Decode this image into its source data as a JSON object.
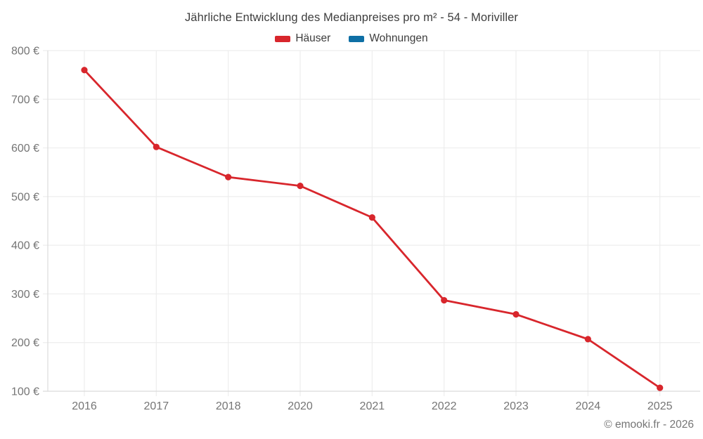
{
  "title": "Jährliche Entwicklung des Medianpreises pro m² - 54 - Moriviller",
  "legend": {
    "items": [
      {
        "label": "Häuser",
        "color": "#d8262c"
      },
      {
        "label": "Wohnungen",
        "color": "#0e6fa5"
      }
    ]
  },
  "copyright": "© emooki.fr - 2026",
  "chart_data": {
    "type": "line",
    "title": "Jährliche Entwicklung des Medianpreises pro m² - 54 - Moriviller",
    "categories": [
      "2016",
      "2017",
      "2018",
      "2020",
      "2021",
      "2022",
      "2023",
      "2024",
      "2025"
    ],
    "series": [
      {
        "name": "Häuser",
        "color": "#d8262c",
        "values": [
          760,
          602,
          540,
          522,
          457,
          287,
          258,
          207,
          107
        ]
      },
      {
        "name": "Wohnungen",
        "color": "#0e6fa5",
        "values": []
      }
    ],
    "y_tick_values": [
      800,
      700,
      600,
      500,
      400,
      300,
      200,
      100
    ],
    "y_tick_labels": [
      "800 €",
      "700 €",
      "600 €",
      "500 €",
      "400 €",
      "300 €",
      "200 €",
      "100 €"
    ],
    "ylim": [
      100,
      800
    ],
    "xlabel": "",
    "ylabel": "",
    "grid": true,
    "legend_position": "top",
    "colors": {
      "grid_line": "#ededed",
      "axis_border": "#dcdcdc",
      "tick_text": "#757575"
    }
  }
}
